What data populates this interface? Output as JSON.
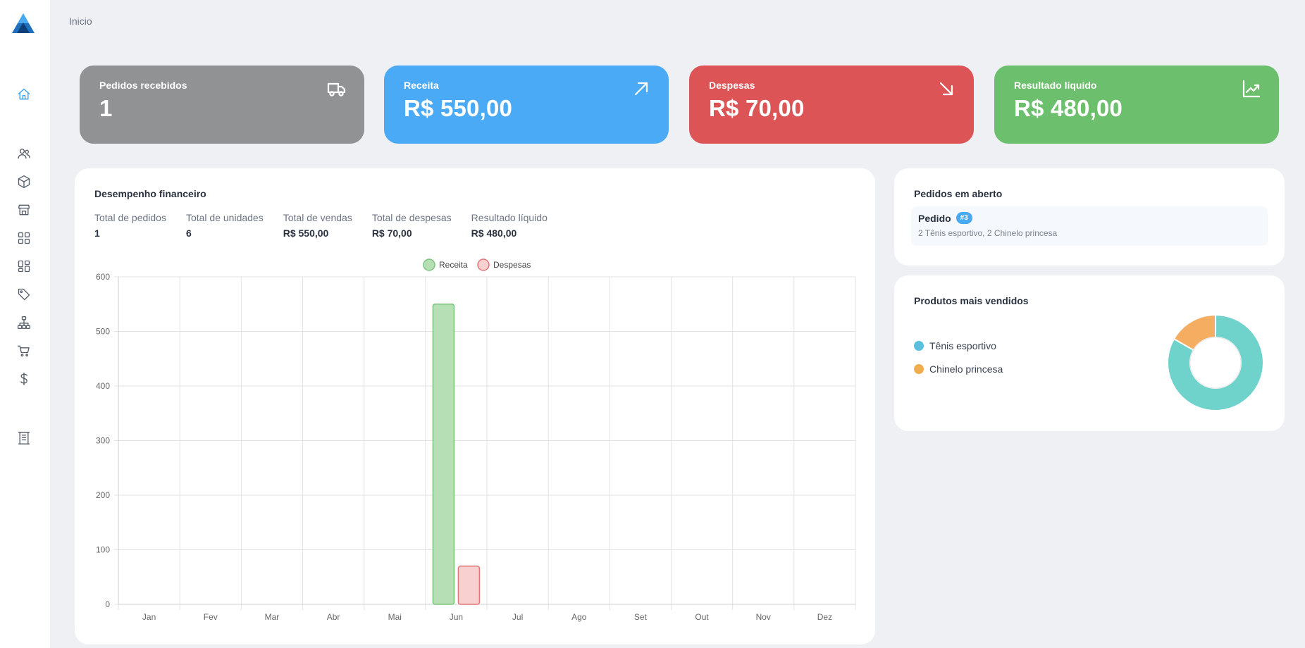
{
  "breadcrumb": "Inicio",
  "sidebar": {
    "items": [
      {
        "icon": "home-icon",
        "active": true
      },
      {
        "icon": "users-icon"
      },
      {
        "icon": "box-icon"
      },
      {
        "icon": "store-icon"
      },
      {
        "icon": "grid-icon"
      },
      {
        "icon": "dashboard-icon"
      },
      {
        "icon": "tag-icon"
      },
      {
        "icon": "hierarchy-icon"
      },
      {
        "icon": "cart-icon"
      },
      {
        "icon": "dollar-icon"
      },
      {
        "icon": "receipt-icon"
      }
    ]
  },
  "kpis": [
    {
      "label": "Pedidos recebidos",
      "value": "1",
      "color": "#919294",
      "icon": "truck-icon"
    },
    {
      "label": "Receita",
      "value": "R$ 550,00",
      "color": "#4aaaf5",
      "icon": "arrow-up-right-icon"
    },
    {
      "label": "Despesas",
      "value": "R$ 70,00",
      "color": "#dc5455",
      "icon": "arrow-down-right-icon"
    },
    {
      "label": "Resultado líquido",
      "value": "R$ 480,00",
      "color": "#6cbf6d",
      "icon": "chart-line-icon"
    }
  ],
  "performance": {
    "title": "Desempenho financeiro",
    "stats": [
      {
        "label": "Total de pedidos",
        "value": "1"
      },
      {
        "label": "Total de unidades",
        "value": "6"
      },
      {
        "label": "Total de vendas",
        "value": "R$ 550,00"
      },
      {
        "label": "Total de despesas",
        "value": "R$ 70,00"
      },
      {
        "label": "Resultado líquido",
        "value": "R$ 480,00"
      }
    ]
  },
  "chart_data": {
    "type": "bar",
    "categories": [
      "Jan",
      "Fev",
      "Mar",
      "Abr",
      "Mai",
      "Jun",
      "Jul",
      "Ago",
      "Set",
      "Out",
      "Nov",
      "Dez"
    ],
    "series": [
      {
        "name": "Receita",
        "values": [
          0,
          0,
          0,
          0,
          0,
          550,
          0,
          0,
          0,
          0,
          0,
          0
        ],
        "fill": "#b6dfb6",
        "stroke": "#7cc37c"
      },
      {
        "name": "Despesas",
        "values": [
          0,
          0,
          0,
          0,
          0,
          70,
          0,
          0,
          0,
          0,
          0,
          0
        ],
        "fill": "#f9d0d0",
        "stroke": "#e07777"
      }
    ],
    "ylim": [
      0,
      600
    ],
    "yticks": [
      0,
      100,
      200,
      300,
      400,
      500,
      600
    ],
    "grid": true,
    "legend": "top-center"
  },
  "open_orders": {
    "title": "Pedidos em aberto",
    "items": [
      {
        "title": "Pedido",
        "badge": "#3",
        "description": "2 Tênis esportivo, 2 Chinelo princesa"
      }
    ]
  },
  "top_products": {
    "title": "Produtos mais vendidos",
    "items": [
      {
        "name": "Tênis esportivo",
        "color": "#6fd2cb",
        "legend_color": "#5bc0de",
        "share": 0.833
      },
      {
        "name": "Chinelo princesa",
        "color": "#f5ad62",
        "legend_color": "#f0ad4e",
        "share": 0.167
      }
    ]
  }
}
